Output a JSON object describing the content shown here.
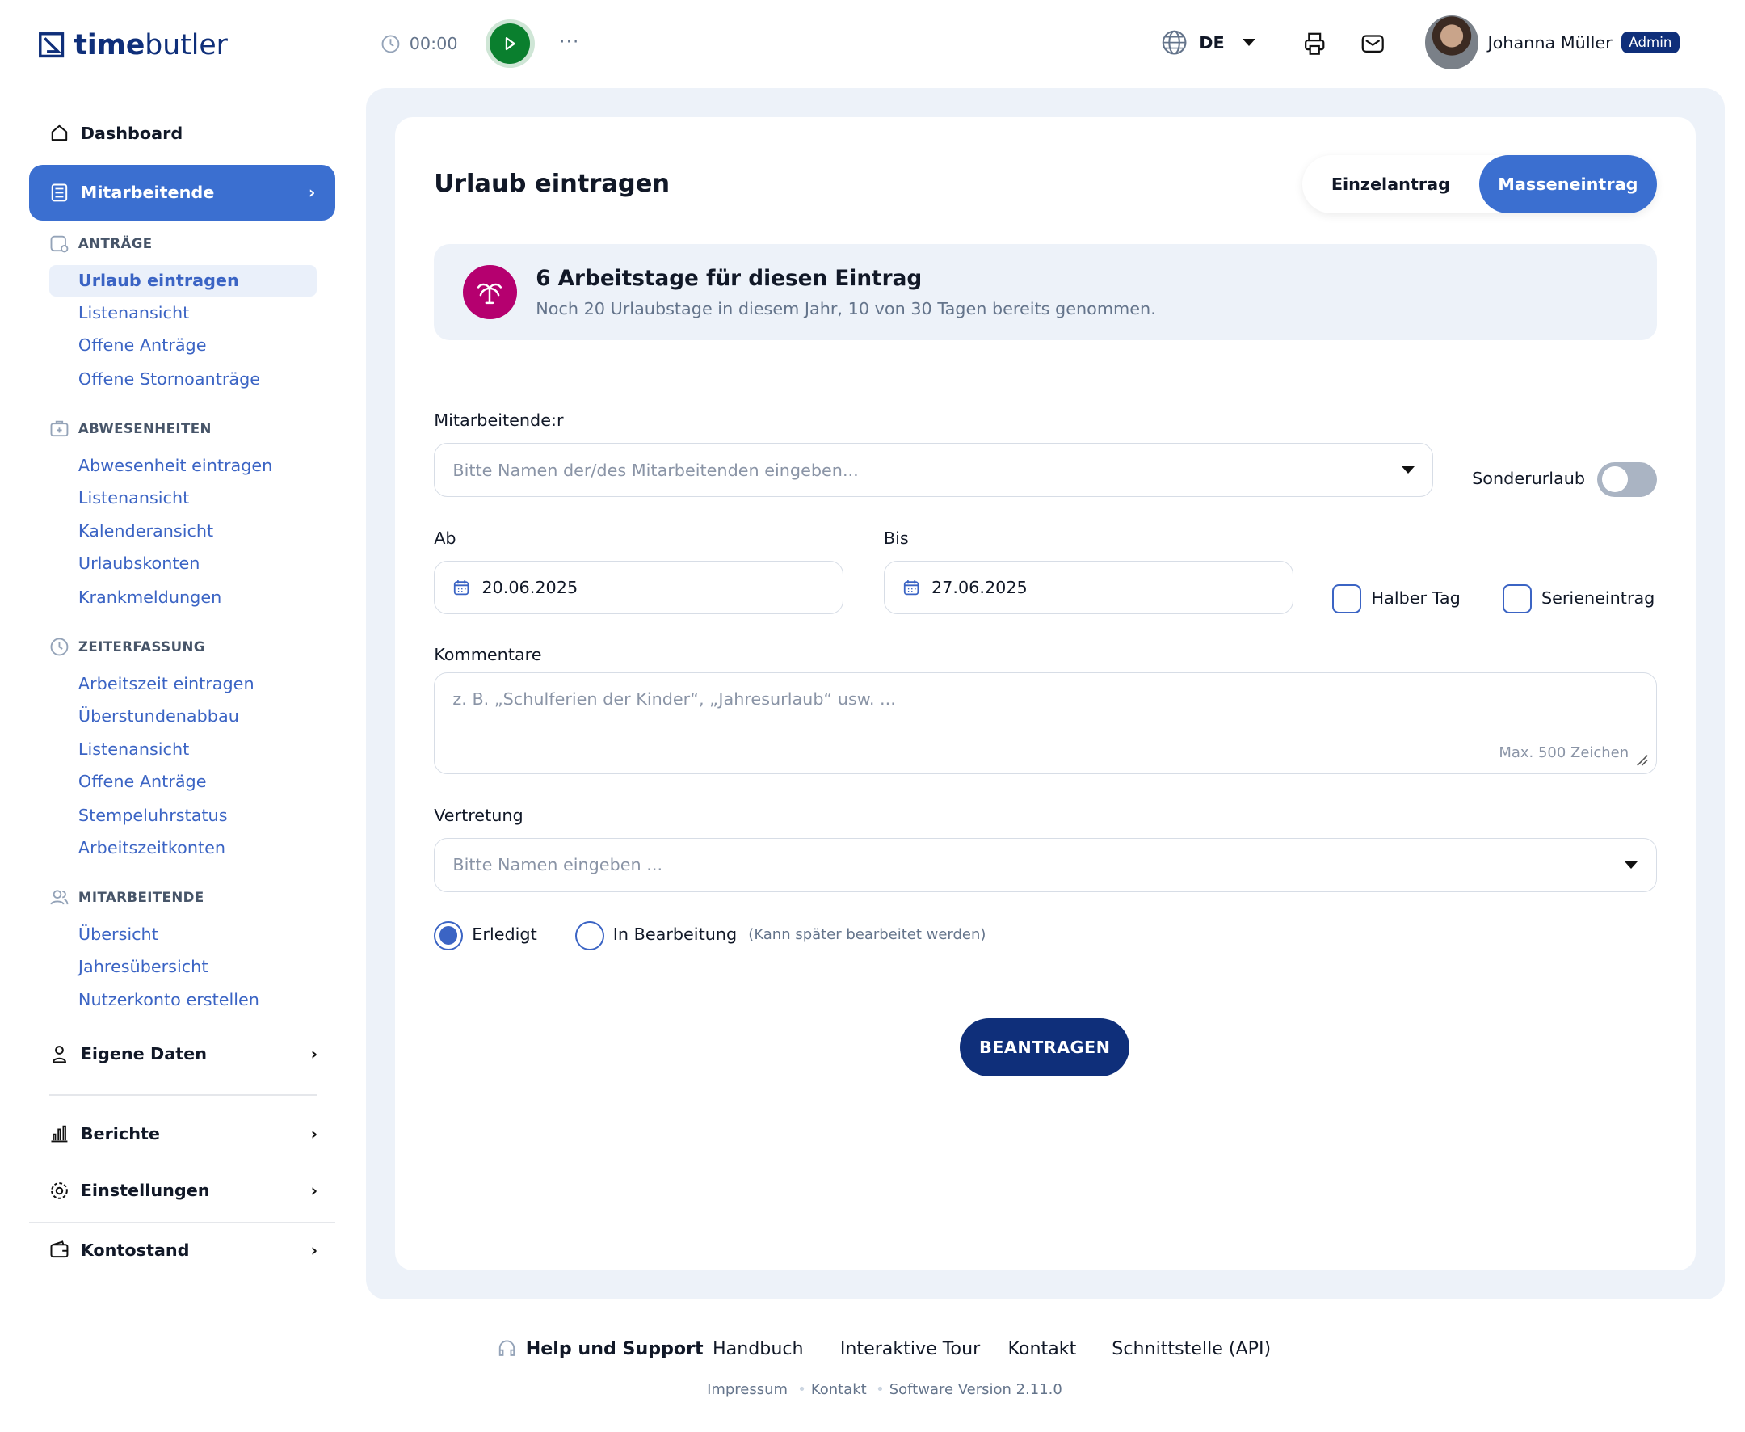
{
  "header": {
    "logo_bold": "time",
    "logo_rest": "butler",
    "timer": "00:00",
    "more": "···",
    "language": "DE",
    "user_name": "Johanna Müller",
    "user_role": "Admin"
  },
  "sidebar": {
    "dashboard": "Dashboard",
    "employees_active": "Mitarbeitende",
    "sections": [
      {
        "title": "ANTRÄGE",
        "items": [
          "Urlaub eintragen",
          "Listenansicht",
          "Offene Anträge",
          "Offene Stornoanträge"
        ]
      },
      {
        "title": "ABWESENHEITEN",
        "items": [
          "Abwesenheit eintragen",
          "Listenansicht",
          "Kalenderansicht",
          "Urlaubskonten",
          "Krankmeldungen"
        ]
      },
      {
        "title": "ZEITERFASSUNG",
        "items": [
          "Arbeitszeit eintragen",
          "Überstundenabbau",
          "Listenansicht",
          "Offene Anträge",
          "Stempeluhrstatus",
          "Arbeitszeitkonten"
        ]
      },
      {
        "title": "MITARBEITENDE",
        "items": [
          "Übersicht",
          "Jahresübersicht",
          "Nutzerkonto erstellen"
        ]
      }
    ],
    "own_data": "Eigene Daten",
    "reports": "Berichte",
    "settings": "Einstellungen",
    "account": "Kontostand"
  },
  "main": {
    "title": "Urlaub eintragen",
    "tab_single": "Einzelantrag",
    "tab_bulk": "Masseneintrag",
    "banner_title": "6 Arbeitstage für diesen Eintrag",
    "banner_sub": "Noch 20 Urlaubstage in diesem Jahr, 10 von 30 Tagen bereits genommen.",
    "employee_label": "Mitarbeitende:r",
    "employee_placeholder": "Bitte Namen der/des Mitarbeitenden eingeben...",
    "special_leave": "Sonderurlaub",
    "special_leave_on": false,
    "from_label": "Ab",
    "from_value": "20.06.2025",
    "to_label": "Bis",
    "to_value": "27.06.2025",
    "half_day": "Halber Tag",
    "series": "Serieneintrag",
    "comment_label": "Kommentare",
    "comment_placeholder": "z. B. „Schulferien der Kinder“, „Jahresurlaub“ usw. ...",
    "comment_max": "Max. 500 Zeichen",
    "substitute_label": "Vertretung",
    "substitute_placeholder": "Bitte Namen eingeben ...",
    "status_done": "Erledigt",
    "status_wip": "In Bearbeitung",
    "status_note": "(Kann später bearbeitet werden)",
    "submit": "BEANTRAGEN"
  },
  "footer": {
    "help": "Help und Support",
    "links": [
      "Handbuch",
      "Interaktive Tour",
      "Kontakt",
      "Schnittstelle (API)"
    ],
    "impressum": "Impressum",
    "contact": "Kontakt",
    "version": "Software Version 2.11.0"
  },
  "colors": {
    "primary": "#3b6fd0",
    "navy": "#0f2f7a",
    "play": "#0a7f2e",
    "palm": "#b5006f"
  }
}
